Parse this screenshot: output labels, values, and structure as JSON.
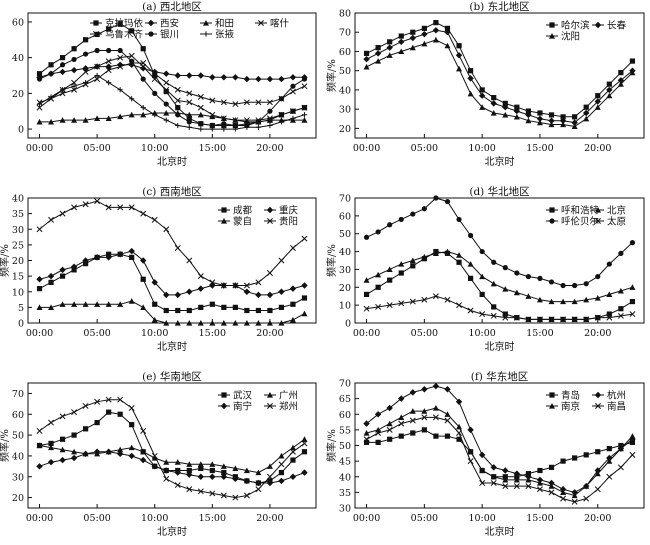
{
  "chart_data": [
    {
      "type": "line",
      "title": "(a) 西北地区",
      "xlabel": "北京时",
      "ylabel": "",
      "xticks": [
        "00:00",
        "05:00",
        "10:00",
        "15:00",
        "20:00"
      ],
      "xlim": [
        -1,
        24
      ],
      "ylim": [
        -5,
        65
      ],
      "yticks": [
        0,
        20,
        40,
        60
      ],
      "legend_position": "top",
      "legend_columns": 4,
      "x": [
        0,
        1,
        2,
        3,
        4,
        5,
        6,
        7,
        8,
        9,
        10,
        11,
        12,
        13,
        14,
        15,
        16,
        17,
        18,
        19,
        20,
        21,
        22,
        23
      ],
      "series": [
        {
          "name": "克拉玛依",
          "marker": "square",
          "values": [
            31,
            36,
            40,
            45,
            50,
            53,
            56,
            59,
            55,
            45,
            30,
            21,
            12,
            6,
            3,
            2,
            2,
            2,
            3,
            4,
            5,
            8,
            10,
            12
          ]
        },
        {
          "name": "西安",
          "marker": "diamond",
          "values": [
            29,
            31,
            32,
            33,
            34,
            35,
            35,
            36,
            36,
            34,
            32,
            31,
            30,
            30,
            30,
            29,
            29,
            29,
            28,
            28,
            28,
            28,
            29,
            29
          ]
        },
        {
          "name": "和田",
          "marker": "triangle",
          "values": [
            4,
            4,
            5,
            5,
            5,
            6,
            6,
            7,
            8,
            8,
            9,
            9,
            9,
            8,
            8,
            7,
            6,
            5,
            4,
            4,
            5,
            5,
            5,
            5
          ]
        },
        {
          "name": "喀什",
          "marker": "x",
          "values": [
            12,
            17,
            22,
            26,
            32,
            35,
            38,
            40,
            41,
            35,
            28,
            22,
            16,
            15,
            12,
            8,
            6,
            5,
            5,
            5,
            6,
            8,
            10,
            12
          ]
        },
        {
          "name": "乌鲁木齐",
          "marker": "x",
          "values": [
            15,
            17,
            20,
            22,
            25,
            28,
            33,
            35,
            37,
            37,
            31,
            26,
            22,
            20,
            18,
            16,
            15,
            14,
            15,
            15,
            15,
            17,
            21,
            24
          ]
        },
        {
          "name": "银川",
          "marker": "circle",
          "values": [
            28,
            31,
            36,
            39,
            42,
            44,
            44,
            44,
            38,
            28,
            20,
            14,
            8,
            4,
            3,
            2,
            3,
            2,
            2,
            4,
            10,
            17,
            24,
            28
          ]
        },
        {
          "name": "张掖",
          "marker": "plus",
          "values": [
            14,
            18,
            22,
            24,
            26,
            30,
            26,
            22,
            17,
            12,
            8,
            5,
            2,
            1,
            0,
            0,
            0,
            0,
            1,
            1,
            2,
            4,
            6,
            8
          ]
        }
      ]
    },
    {
      "type": "line",
      "title": "(b) 东北地区",
      "xlabel": "北京时",
      "ylabel": "频率/%",
      "xticks": [
        "00:00",
        "05:00",
        "10:00",
        "15:00",
        "20:00"
      ],
      "xlim": [
        -1,
        24
      ],
      "ylim": [
        15,
        80
      ],
      "yticks": [
        20,
        30,
        40,
        50,
        60,
        70,
        80
      ],
      "legend_position": "top-right",
      "legend_columns": 2,
      "x": [
        0,
        1,
        2,
        3,
        4,
        5,
        6,
        7,
        8,
        9,
        10,
        11,
        12,
        13,
        14,
        15,
        16,
        17,
        18,
        19,
        20,
        21,
        22,
        23
      ],
      "series": [
        {
          "name": "哈尔滨",
          "marker": "square",
          "values": [
            59,
            62,
            65,
            68,
            70,
            72,
            75,
            72,
            63,
            50,
            40,
            36,
            33,
            31,
            29,
            28,
            27,
            26,
            26,
            31,
            37,
            43,
            49,
            55
          ]
        },
        {
          "name": "长春",
          "marker": "diamond",
          "values": [
            56,
            59,
            62,
            65,
            67,
            69,
            71,
            70,
            58,
            46,
            37,
            33,
            31,
            29,
            27,
            25,
            24,
            24,
            23,
            28,
            34,
            40,
            45,
            50
          ]
        },
        {
          "name": "沈阳",
          "marker": "triangle",
          "values": [
            52,
            55,
            58,
            60,
            62,
            64,
            66,
            63,
            51,
            38,
            31,
            28,
            27,
            26,
            24,
            23,
            22,
            22,
            21,
            25,
            31,
            37,
            43,
            49
          ]
        }
      ]
    },
    {
      "type": "line",
      "title": "(c) 西南地区",
      "xlabel": "北京时",
      "ylabel": "频率/%",
      "xticks": [
        "00:00",
        "05:00",
        "10:00",
        "15:00",
        "20:00"
      ],
      "xlim": [
        -1,
        24
      ],
      "ylim": [
        0,
        40
      ],
      "yticks": [
        0,
        5,
        10,
        15,
        20,
        25,
        30,
        35,
        40
      ],
      "legend_position": "top-right",
      "legend_columns": 2,
      "x": [
        0,
        1,
        2,
        3,
        4,
        5,
        6,
        7,
        8,
        9,
        10,
        11,
        12,
        13,
        14,
        15,
        16,
        17,
        18,
        19,
        20,
        21,
        22,
        23
      ],
      "series": [
        {
          "name": "成都",
          "marker": "square",
          "values": [
            11,
            13,
            15,
            17,
            19,
            21,
            22,
            22,
            21,
            14,
            6,
            4,
            4,
            4,
            5,
            6,
            5,
            5,
            4,
            4,
            4,
            5,
            6,
            8
          ]
        },
        {
          "name": "重庆",
          "marker": "diamond",
          "values": [
            14,
            15,
            17,
            18,
            20,
            21,
            21,
            22,
            23,
            20,
            13,
            9,
            9,
            10,
            11,
            12,
            12,
            12,
            10,
            9,
            9,
            10,
            11,
            12
          ]
        },
        {
          "name": "蒙自",
          "marker": "triangle",
          "values": [
            5,
            5,
            6,
            6,
            6,
            6,
            6,
            6,
            7,
            5,
            1,
            0,
            0,
            0,
            0,
            0,
            0,
            0,
            0,
            0,
            0,
            0,
            1,
            3
          ]
        },
        {
          "name": "贵阳",
          "marker": "x",
          "values": [
            30,
            33,
            35,
            37,
            38,
            39,
            37,
            37,
            37,
            35,
            33,
            30,
            24,
            20,
            15,
            13,
            12,
            12,
            12,
            13,
            16,
            20,
            24,
            27
          ]
        }
      ]
    },
    {
      "type": "line",
      "title": "(d) 华北地区",
      "xlabel": "北京时",
      "ylabel": "频率/%",
      "xticks": [
        "00:00",
        "05:00",
        "10:00",
        "15:00",
        "20:00"
      ],
      "xlim": [
        -1,
        24
      ],
      "ylim": [
        0,
        70
      ],
      "yticks": [
        0,
        10,
        20,
        30,
        40,
        50,
        60,
        70
      ],
      "legend_position": "top-right",
      "legend_columns": 2,
      "x": [
        0,
        1,
        2,
        3,
        4,
        5,
        6,
        7,
        8,
        9,
        10,
        11,
        12,
        13,
        14,
        15,
        16,
        17,
        18,
        19,
        20,
        21,
        22,
        23
      ],
      "series": [
        {
          "name": "呼和浩特",
          "marker": "square",
          "values": [
            16,
            20,
            24,
            28,
            32,
            36,
            40,
            39,
            34,
            25,
            16,
            9,
            5,
            3,
            2,
            2,
            2,
            2,
            2,
            2,
            3,
            5,
            8,
            12
          ]
        },
        {
          "name": "北京",
          "marker": "triangle",
          "values": [
            24,
            27,
            30,
            33,
            35,
            37,
            39,
            40,
            38,
            33,
            26,
            22,
            19,
            17,
            15,
            13,
            12,
            12,
            12,
            13,
            14,
            16,
            18,
            20
          ]
        },
        {
          "name": "呼伦贝尔",
          "marker": "circle",
          "values": [
            48,
            51,
            55,
            58,
            61,
            64,
            70,
            68,
            58,
            49,
            40,
            34,
            31,
            28,
            26,
            25,
            23,
            21,
            21,
            22,
            26,
            33,
            39,
            45
          ]
        },
        {
          "name": "太原",
          "marker": "x",
          "values": [
            8,
            9,
            10,
            11,
            12,
            13,
            15,
            13,
            10,
            7,
            5,
            4,
            3,
            3,
            2,
            2,
            2,
            2,
            2,
            2,
            3,
            3,
            4,
            5
          ]
        }
      ]
    },
    {
      "type": "line",
      "title": "(e) 华南地区",
      "xlabel": "北京时",
      "ylabel": "频率/%",
      "xticks": [
        "00:00",
        "05:00",
        "10:00",
        "15:00",
        "20:00"
      ],
      "xlim": [
        -1,
        24
      ],
      "ylim": [
        15,
        75
      ],
      "yticks": [
        20,
        30,
        40,
        50,
        60,
        70
      ],
      "legend_position": "top-right",
      "legend_columns": 2,
      "x": [
        0,
        1,
        2,
        3,
        4,
        5,
        6,
        7,
        8,
        9,
        10,
        11,
        12,
        13,
        14,
        15,
        16,
        17,
        18,
        19,
        20,
        21,
        22,
        23
      ],
      "series": [
        {
          "name": "武汉",
          "marker": "square",
          "values": [
            45,
            46,
            48,
            50,
            53,
            56,
            61,
            60,
            55,
            42,
            35,
            33,
            33,
            33,
            34,
            33,
            32,
            30,
            28,
            27,
            28,
            32,
            38,
            42
          ]
        },
        {
          "name": "广州",
          "marker": "triangle",
          "values": [
            45,
            44,
            43,
            42,
            41,
            41,
            42,
            43,
            44,
            42,
            39,
            37,
            37,
            36,
            36,
            36,
            35,
            34,
            33,
            32,
            35,
            40,
            44,
            48
          ]
        },
        {
          "name": "南宁",
          "marker": "diamond",
          "values": [
            35,
            37,
            38,
            39,
            41,
            42,
            42,
            41,
            40,
            38,
            35,
            33,
            32,
            31,
            30,
            30,
            30,
            29,
            28,
            27,
            27,
            28,
            30,
            32
          ]
        },
        {
          "name": "郑州",
          "marker": "x",
          "values": [
            52,
            56,
            59,
            61,
            64,
            66,
            67,
            67,
            63,
            52,
            40,
            29,
            26,
            24,
            23,
            22,
            21,
            20,
            21,
            24,
            30,
            36,
            42,
            46
          ]
        }
      ]
    },
    {
      "type": "line",
      "title": "(f) 华东地区",
      "xlabel": "北京时",
      "ylabel": "频率/%",
      "xticks": [
        "00:00",
        "05:00",
        "10:00",
        "15:00",
        "20:00"
      ],
      "xlim": [
        -1,
        24
      ],
      "ylim": [
        30,
        70
      ],
      "yticks": [
        30,
        35,
        40,
        45,
        50,
        55,
        60,
        65,
        70
      ],
      "legend_position": "top-right",
      "legend_columns": 2,
      "x": [
        0,
        1,
        2,
        3,
        4,
        5,
        6,
        7,
        8,
        9,
        10,
        11,
        12,
        13,
        14,
        15,
        16,
        17,
        18,
        19,
        20,
        21,
        22,
        23
      ],
      "series": [
        {
          "name": "青岛",
          "marker": "square",
          "values": [
            51,
            51,
            52,
            53,
            54,
            55,
            53,
            53,
            52,
            48,
            42,
            40,
            40,
            40,
            41,
            42,
            43,
            45,
            46,
            47,
            48,
            49,
            50,
            51
          ]
        },
        {
          "name": "杭州",
          "marker": "diamond",
          "values": [
            57,
            60,
            62,
            65,
            67,
            68,
            69,
            68,
            64,
            55,
            47,
            43,
            42,
            41,
            40,
            39,
            38,
            36,
            35,
            37,
            42,
            46,
            49,
            52
          ]
        },
        {
          "name": "南京",
          "marker": "triangle",
          "values": [
            54,
            55,
            57,
            59,
            61,
            61,
            62,
            60,
            56,
            48,
            42,
            40,
            39,
            39,
            39,
            38,
            37,
            35,
            34,
            37,
            41,
            45,
            49,
            53
          ]
        },
        {
          "name": "南昌",
          "marker": "x",
          "values": [
            52,
            54,
            55,
            57,
            58,
            59,
            59,
            58,
            54,
            45,
            38,
            38,
            37,
            37,
            37,
            36,
            35,
            33,
            32,
            33,
            36,
            40,
            43,
            47
          ]
        }
      ]
    }
  ]
}
